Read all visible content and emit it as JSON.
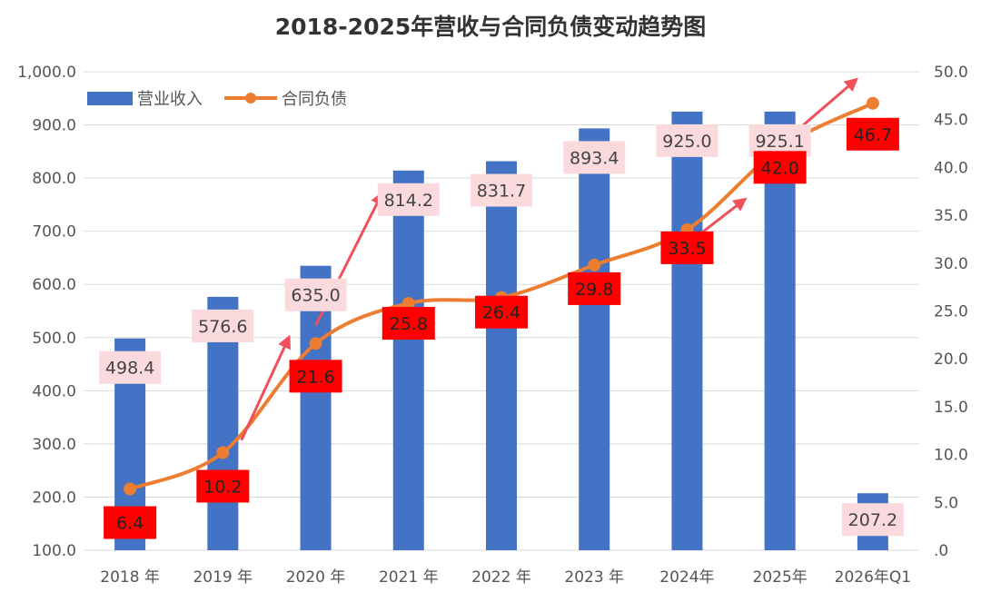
{
  "chart_data": {
    "type": "bar+line",
    "title": "2018-2025年营收与合同负债变动趋势图",
    "categories": [
      "2018 年",
      "2019 年",
      "2020 年",
      "2021 年",
      "2022 年",
      "2023 年",
      "2024年",
      "2025年",
      "2026年Q1"
    ],
    "series": [
      {
        "name": "营业收入",
        "type": "bar",
        "axis": "left",
        "values": [
          498.4,
          576.6,
          635.0,
          814.2,
          831.7,
          893.4,
          925.0,
          925.1,
          207.2
        ],
        "labels": [
          "498.4",
          "576.6",
          "635.0",
          "814.2",
          "831.7",
          "893.4",
          "925.0",
          "925.1",
          "207.2"
        ],
        "color": "#4472C4"
      },
      {
        "name": "合同负债",
        "type": "line",
        "axis": "right",
        "values": [
          6.4,
          10.2,
          21.6,
          25.8,
          26.4,
          29.8,
          33.5,
          42.0,
          46.7
        ],
        "labels": [
          "6.4",
          "10.2",
          "21.6",
          "25.8",
          "26.4",
          "29.8",
          "33.5",
          "42.0",
          "46.7"
        ],
        "color": "#ED7D31"
      }
    ],
    "y_left": {
      "range": [
        100,
        1000
      ],
      "ticks": [
        100,
        200,
        300,
        400,
        500,
        600,
        700,
        800,
        900,
        1000
      ],
      "tick_labels": [
        "100.0",
        "200.0",
        "300.0",
        "400.0",
        "500.0",
        "600.0",
        "700.0",
        "800.0",
        "900.0",
        "1,000.0"
      ]
    },
    "y_right": {
      "range": [
        0,
        50
      ],
      "ticks": [
        0,
        5,
        10,
        15,
        20,
        25,
        30,
        35,
        40,
        45,
        50
      ],
      "tick_labels": [
        ".0",
        "5.0",
        "10.0",
        "15.0",
        "20.0",
        "25.0",
        "30.0",
        "35.0",
        "40.0",
        "45.0",
        "50.0"
      ]
    },
    "grid": true,
    "legend": "top-left",
    "rev_label_bg": "#FADADD",
    "lia_label_bg": "#FF0000",
    "arrow_color": "#F0505A",
    "arrows": [
      {
        "from": 1.2,
        "to": 1.7,
        "from_value": 11.5,
        "to_value": 22.0
      },
      {
        "from": 2.0,
        "to": 2.7,
        "from_value": 23.5,
        "to_value": 37.0
      },
      {
        "from": 6.0,
        "to": 6.6,
        "from_value": 32.0,
        "to_value": 36.5
      },
      {
        "from": 7.2,
        "to": 7.8,
        "from_value": 44.0,
        "to_value": 49.0
      }
    ]
  }
}
